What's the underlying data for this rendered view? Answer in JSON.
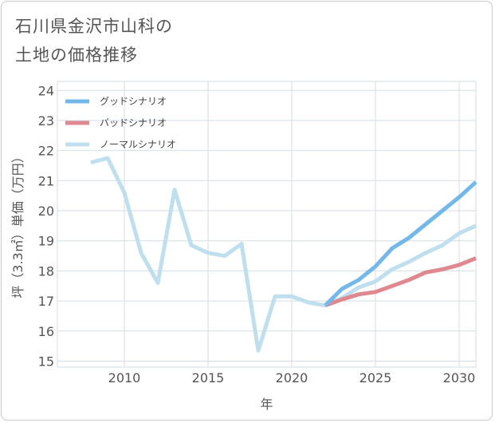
{
  "chart_data": {
    "type": "line",
    "title": "石川県金沢市山科の\n土地の価格推移",
    "xlabel": "年",
    "ylabel": "坪（3.3㎡）単価（万円）",
    "xlim": [
      2006,
      2031
    ],
    "ylim": [
      14.8,
      24.3
    ],
    "xticks": [
      2010,
      2015,
      2020,
      2025,
      2030
    ],
    "yticks": [
      15,
      16,
      17,
      18,
      19,
      20,
      21,
      22,
      23,
      24
    ],
    "legend_position": "top-left",
    "series": [
      {
        "name": "グッドシナリオ",
        "color": "#74b8ea",
        "x": [
          2022,
          2023,
          2024,
          2025,
          2026,
          2027,
          2028,
          2029,
          2030,
          2031
        ],
        "y": [
          16.85,
          17.4,
          17.7,
          18.15,
          18.75,
          19.1,
          19.55,
          20.0,
          20.45,
          20.95
        ]
      },
      {
        "name": "バッドシナリオ",
        "color": "#e0888f",
        "x": [
          2022,
          2023,
          2024,
          2025,
          2026,
          2027,
          2028,
          2029,
          2030,
          2031
        ],
        "y": [
          16.85,
          17.05,
          17.22,
          17.3,
          17.5,
          17.7,
          17.95,
          18.05,
          18.2,
          18.42
        ]
      },
      {
        "name": "ノーマルシナリオ",
        "color": "#c0dfee",
        "x": [
          2008,
          2009,
          2010,
          2011,
          2012,
          2013,
          2014,
          2015,
          2016,
          2017,
          2018,
          2019,
          2020,
          2021,
          2022,
          2023,
          2024,
          2025,
          2026,
          2027,
          2028,
          2029,
          2030,
          2031
        ],
        "y": [
          21.6,
          21.75,
          20.6,
          18.6,
          17.6,
          20.7,
          18.85,
          18.6,
          18.5,
          18.9,
          15.35,
          17.15,
          17.15,
          16.95,
          16.85,
          17.1,
          17.45,
          17.65,
          18.05,
          18.3,
          18.6,
          18.85,
          19.25,
          19.5
        ]
      }
    ]
  }
}
